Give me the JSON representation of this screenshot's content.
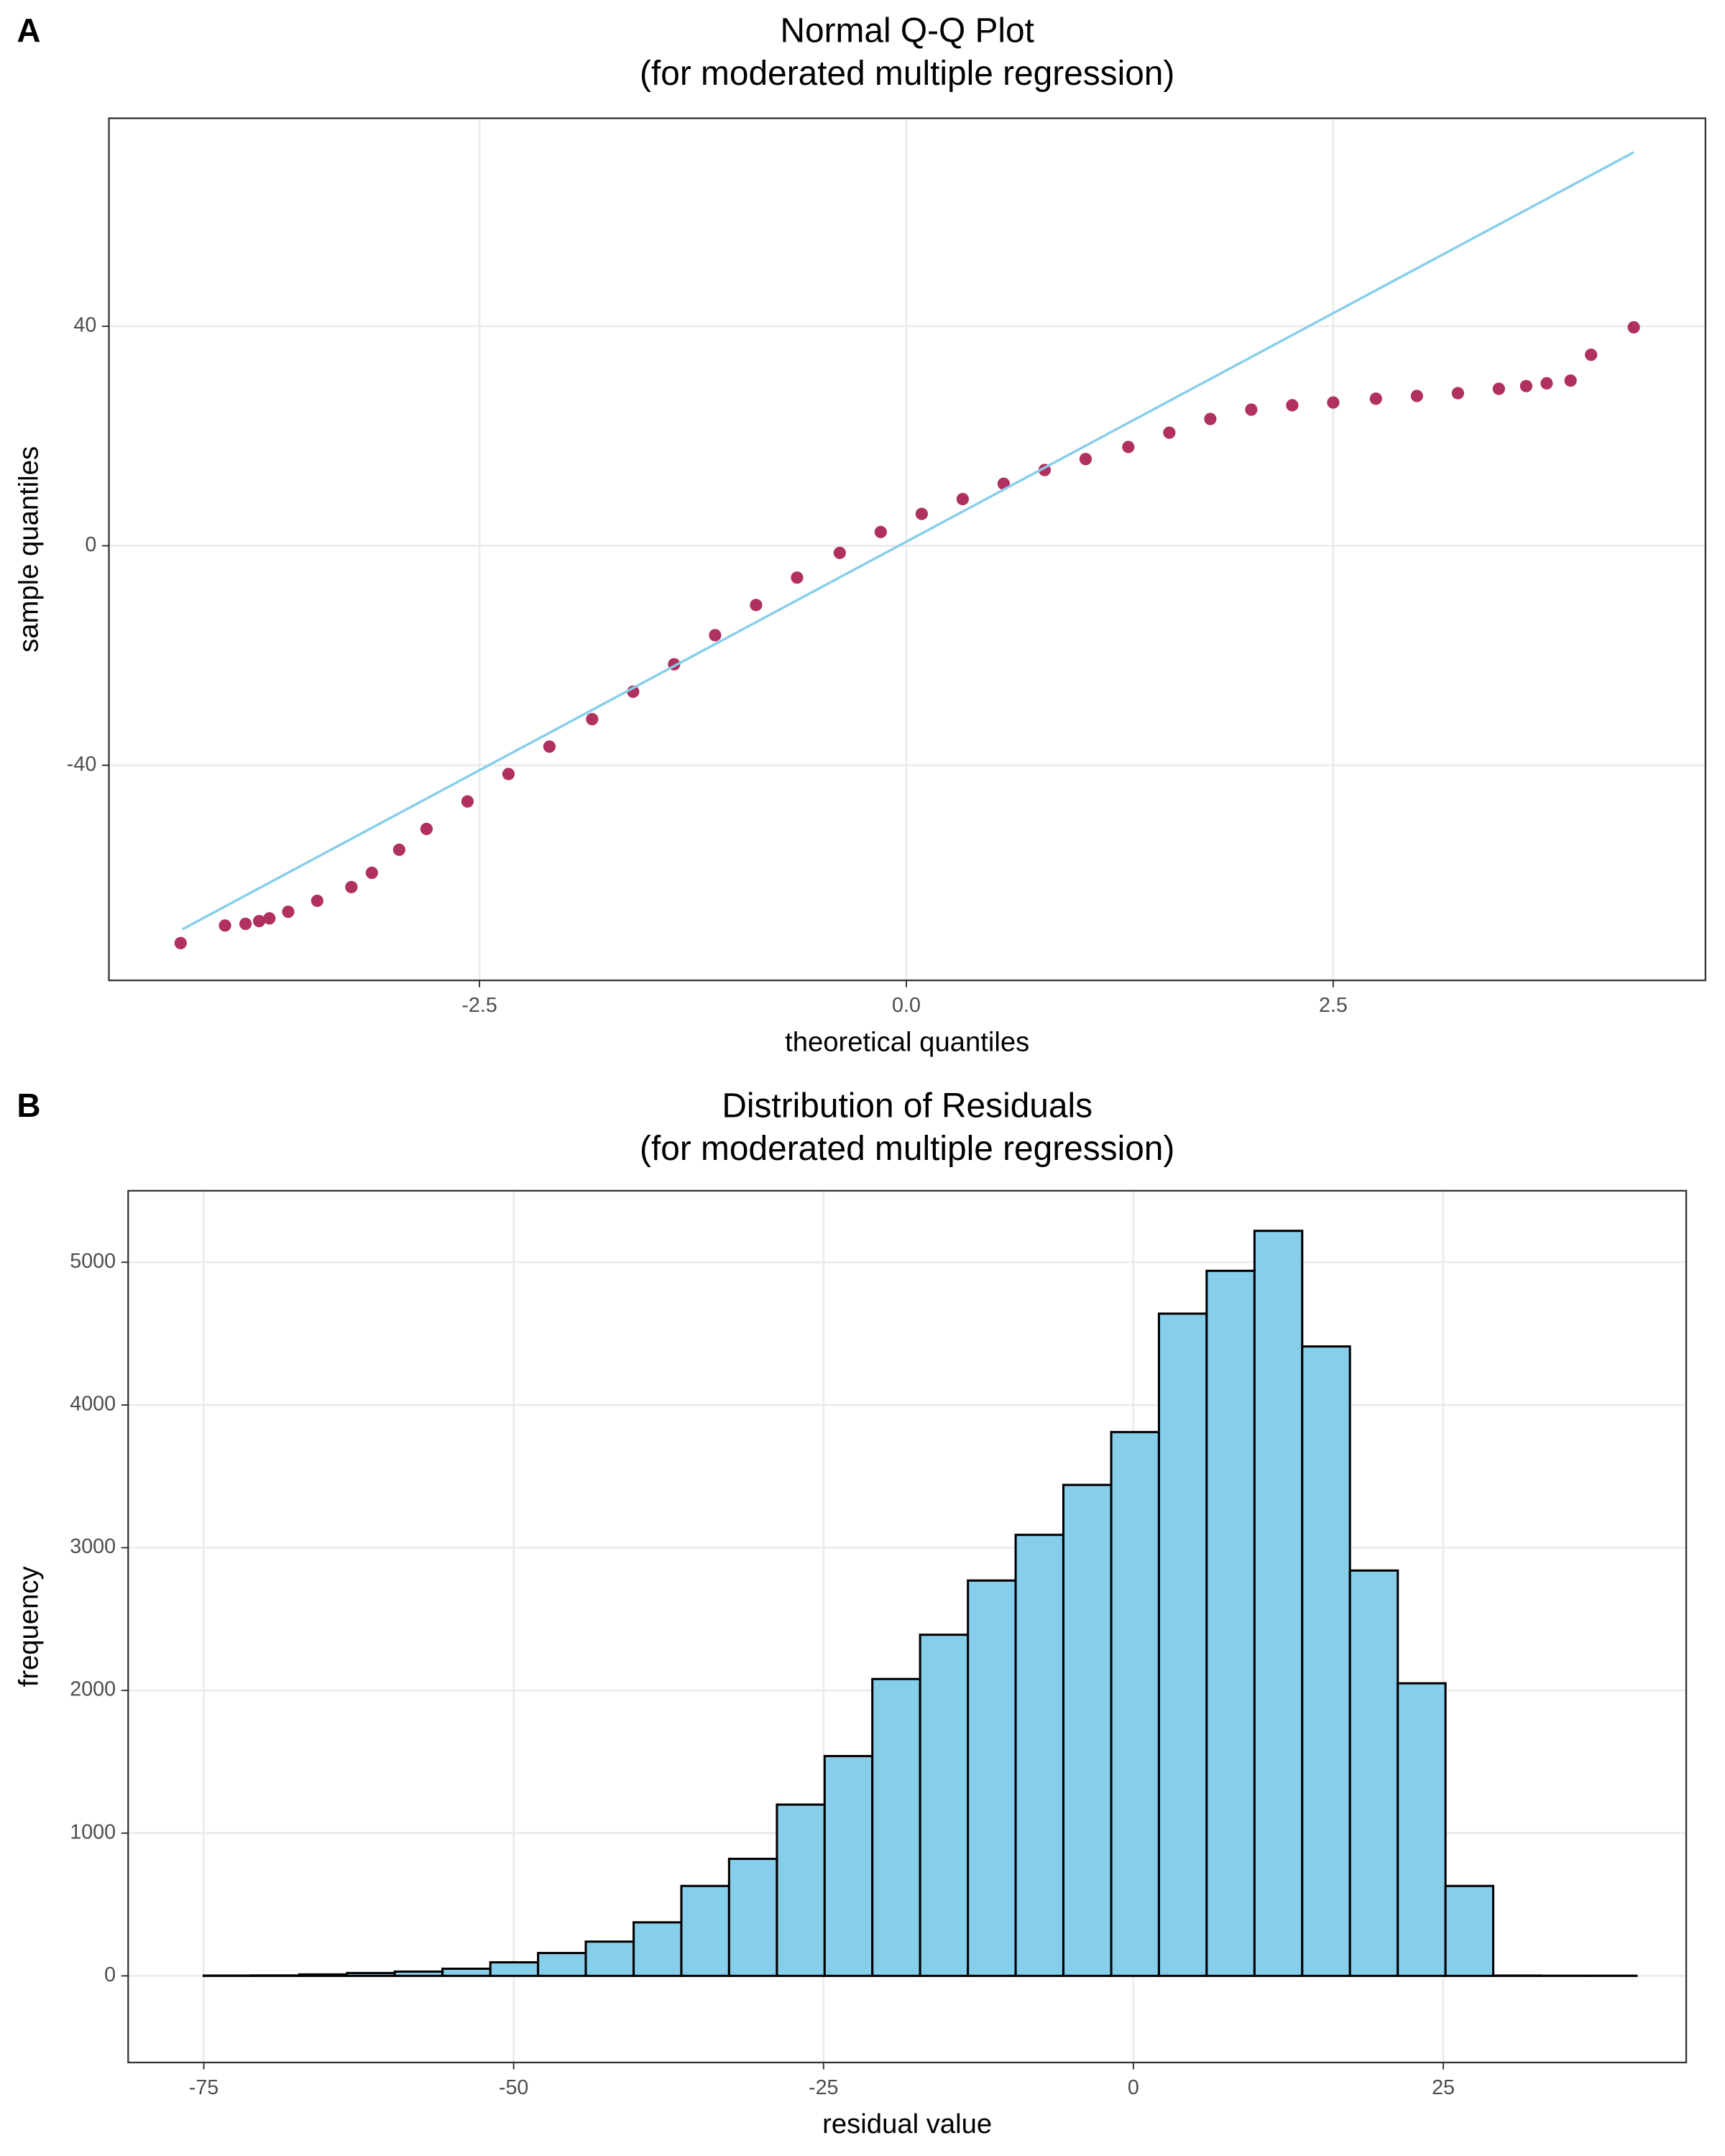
{
  "chart_data": [
    {
      "type": "scatter",
      "panel_label": "A",
      "title": "Normal Q-Q Plot",
      "subtitle": "(for moderated multiple regression)",
      "x_label": "theoretical quantiles",
      "y_label": "sample quantiles",
      "xlim": [
        -4.67,
        4.68
      ],
      "ylim": [
        -79.2,
        77.9
      ],
      "xticks": [
        -2.5,
        {
          "value": 0,
          "label": "0.0"
        },
        2.5
      ],
      "yticks": [
        -40,
        0,
        40
      ],
      "grid": true,
      "points": {
        "color": "#b03060",
        "x": [
          -4.25,
          -3.99,
          -3.87,
          -3.79,
          -3.73,
          -3.62,
          -3.45,
          -3.25,
          -3.13,
          -2.97,
          -2.81,
          -2.57,
          -2.33,
          -2.09,
          -1.84,
          -1.6,
          -1.36,
          -1.12,
          -0.88,
          -0.64,
          -0.39,
          -0.15,
          0.09,
          0.33,
          0.57,
          0.81,
          1.05,
          1.3,
          1.54,
          1.78,
          2.02,
          2.26,
          2.5,
          2.75,
          2.99,
          3.23,
          3.47,
          3.63,
          3.75,
          3.89,
          4.01,
          4.26
        ],
        "y": [
          -72.4,
          -69.2,
          -68.9,
          -68.4,
          -67.9,
          -66.7,
          -64.7,
          -62.2,
          -59.6,
          -55.4,
          -51.6,
          -46.6,
          -41.6,
          -36.6,
          -31.6,
          -26.6,
          -21.6,
          -16.3,
          -10.8,
          -5.8,
          -1.3,
          2.5,
          5.8,
          8.5,
          11.3,
          13.8,
          15.8,
          18.0,
          20.6,
          23.1,
          24.8,
          25.6,
          26.1,
          26.8,
          27.3,
          27.8,
          28.6,
          29.1,
          29.6,
          30.1,
          34.8,
          39.8
        ]
      },
      "reference_line": {
        "color": "#87ceeb",
        "x": [
          -4.24,
          4.26
        ],
        "y": [
          -69.9,
          71.7
        ]
      }
    },
    {
      "type": "histogram",
      "panel_label": "B",
      "title": "Distribution of Residuals",
      "subtitle": "(for moderated multiple regression)",
      "x_label": "residual value",
      "y_label": "frequency",
      "xlim": [
        -81.1,
        44.6
      ],
      "ylim": [
        -607,
        5501
      ],
      "xticks": [
        -75,
        -50,
        -25,
        0,
        25
      ],
      "yticks": [
        0,
        1000,
        2000,
        3000,
        4000,
        5000
      ],
      "grid": true,
      "color": "#87ceeb",
      "edge_color": "#000000",
      "bins": [
        -75,
        -71.15,
        -67.29,
        -63.44,
        -59.59,
        -55.74,
        -51.88,
        -48.03,
        -44.18,
        -40.32,
        -36.47,
        -32.62,
        -28.76,
        -24.91,
        -21.06,
        -17.21,
        -13.35,
        -9.5,
        -5.65,
        -1.79,
        2.06,
        5.91,
        9.77,
        13.62,
        17.47,
        21.33,
        25.18,
        29.03,
        32.88,
        36.74,
        40.59
      ],
      "values": [
        2,
        3,
        10,
        20,
        30,
        50,
        95,
        160,
        240,
        375,
        630,
        820,
        1200,
        1540,
        2080,
        2390,
        2770,
        3090,
        3440,
        3810,
        4640,
        4940,
        5220,
        4410,
        2840,
        2050,
        630,
        2,
        1,
        1
      ]
    }
  ]
}
